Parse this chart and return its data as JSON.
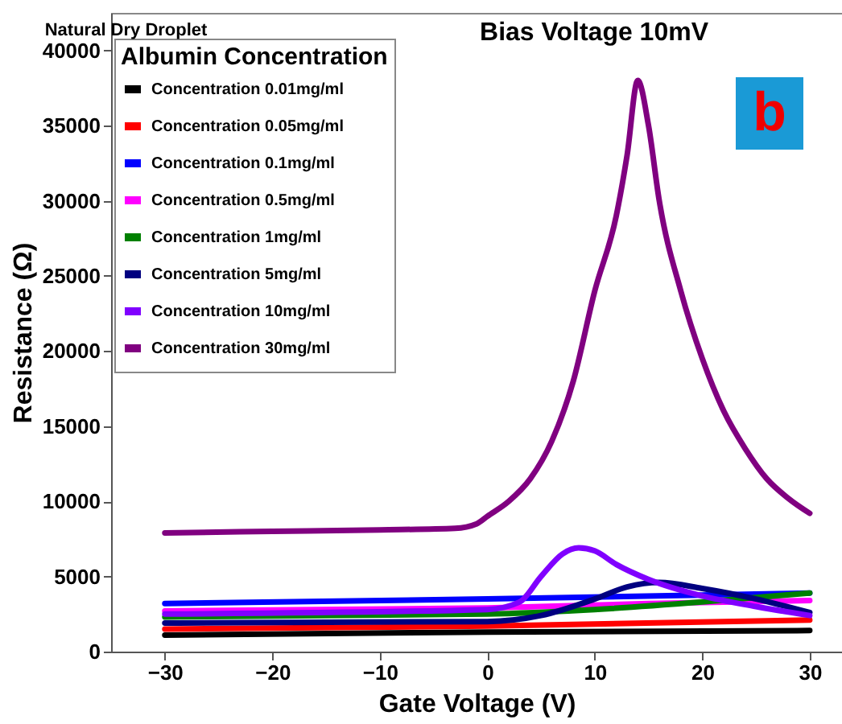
{
  "chart_data": {
    "type": "line",
    "title": "Natural Dry Droplet",
    "legend_title": "Albumin Concentration",
    "xlabel": "Gate Voltage (V)",
    "ylabel": "Resistance (Ω)",
    "annotations": [
      "Bias Voltage 10mV",
      "b"
    ],
    "xlim": [
      -35,
      33
    ],
    "xticks": [
      -30,
      -20,
      -10,
      0,
      10,
      20,
      30
    ],
    "ylim": [
      0,
      42500
    ],
    "yticks": [
      0,
      5000,
      10000,
      15000,
      20000,
      25000,
      30000,
      35000,
      40000
    ],
    "grid": false,
    "legend": "top left",
    "marker": "none",
    "line_style": "solid",
    "series": [
      {
        "name": "Concentration 0.01mg/ml",
        "color": "#000000",
        "x": [
          -30,
          0,
          30
        ],
        "values": [
          1100,
          1300,
          1400
        ]
      },
      {
        "name": "Concentration 0.05mg/ml",
        "color": "#ff0000",
        "x": [
          -30,
          0,
          30
        ],
        "values": [
          1500,
          1700,
          2100
        ]
      },
      {
        "name": "Concentration 0.1mg/ml",
        "color": "#0000ff",
        "x": [
          -30,
          0,
          30
        ],
        "values": [
          3200,
          3500,
          3900
        ]
      },
      {
        "name": "Concentration 0.5mg/ml",
        "color": "#ff00ff",
        "x": [
          -30,
          0,
          15,
          30
        ],
        "values": [
          2700,
          2900,
          3200,
          3400
        ]
      },
      {
        "name": "Concentration 1mg/ml",
        "color": "#008000",
        "x": [
          -30,
          0,
          10,
          20,
          30
        ],
        "values": [
          2300,
          2500,
          2800,
          3300,
          3900
        ]
      },
      {
        "name": "Concentration 5mg/ml",
        "color": "#000080",
        "x": [
          -30,
          0,
          5,
          10,
          13,
          16,
          20,
          25,
          30
        ],
        "values": [
          1900,
          2000,
          2400,
          3500,
          4300,
          4600,
          4200,
          3500,
          2600
        ]
      },
      {
        "name": "Concentration 10mg/ml",
        "color": "#8000ff",
        "x": [
          -30,
          0,
          3,
          5,
          7,
          8.5,
          10,
          12,
          15,
          20,
          25,
          30
        ],
        "values": [
          2500,
          2800,
          3300,
          5000,
          6500,
          6900,
          6700,
          5800,
          4800,
          3700,
          3000,
          2400
        ]
      },
      {
        "name": "Concentration 30mg/ml",
        "color": "#800080",
        "x": [
          -30,
          -20,
          -10,
          -3,
          -1,
          0,
          2,
          4,
          6,
          8,
          10,
          12,
          13,
          14,
          15,
          16,
          18,
          20,
          22,
          24,
          26,
          28,
          30
        ],
        "values": [
          7900,
          8000,
          8100,
          8200,
          8500,
          9000,
          10000,
          11500,
          14000,
          18000,
          24000,
          29000,
          33000,
          38000,
          35000,
          30000,
          24000,
          19500,
          16000,
          13500,
          11500,
          10200,
          9200
        ]
      }
    ]
  }
}
